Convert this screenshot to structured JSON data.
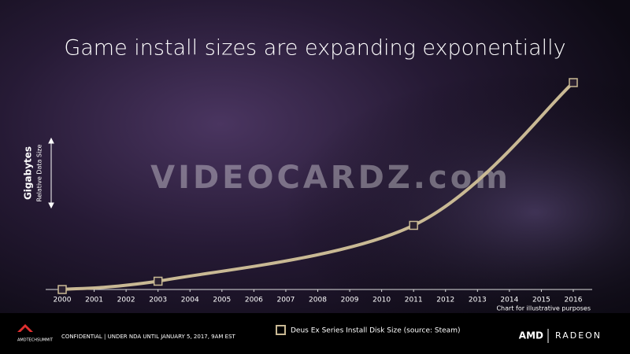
{
  "chart_data": {
    "type": "line",
    "title": "Game install sizes are expanding exponentially",
    "y_label": "Gigabytes",
    "y_sublabel": "Relative Data Size",
    "note": "Chart for illustrative purposes",
    "x": [
      2000,
      2003,
      2011,
      2016
    ],
    "series": [
      {
        "name": "Deus Ex Series Install Disk Size (source: Steam)",
        "color": "#c9b994",
        "values": [
          0,
          4,
          31,
          100
        ]
      }
    ],
    "xlim": [
      2000,
      2016
    ],
    "xticks": [
      2000,
      2001,
      2002,
      2003,
      2004,
      2005,
      2006,
      2007,
      2008,
      2009,
      2010,
      2011,
      2012,
      2013,
      2014,
      2015,
      2016
    ],
    "ylim": [
      0,
      100
    ]
  },
  "watermark": "VIDEOCARDZ.com",
  "footer": {
    "event": "AMDTECHSUMMIT",
    "confidential": "CONFIDENTIAL | UNDER NDA UNTIL JANUARY 5, 2017, 9AM EST",
    "brand": "AMD",
    "product": "RADEON"
  }
}
